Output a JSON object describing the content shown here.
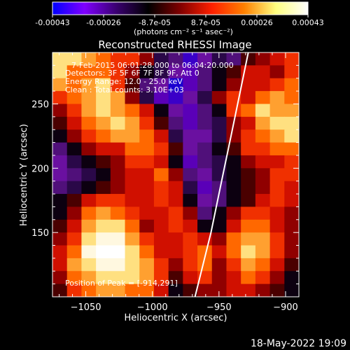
{
  "colorbar": {
    "tick_labels": [
      "-0.00043",
      "-0.00026",
      "-8.7e-05",
      "8.7e-05",
      "0.00026",
      "0.00043"
    ],
    "unit_label": "(photons cm⁻² s⁻¹ asec⁻²)",
    "colors": [
      "#0000ff",
      "#7f00ff",
      "#3a0070",
      "#000000",
      "#800000",
      "#ff2000",
      "#ff8000",
      "#ffff80",
      "#ffffff"
    ]
  },
  "chart_data": {
    "type": "heatmap",
    "title": "Reconstructed RHESSI Image",
    "xlabel": "Heliocentric X (arcsec)",
    "ylabel": "Heliocentric Y (arcsec)",
    "xlim": [
      -1075,
      -890
    ],
    "ylim": [
      100,
      290
    ],
    "x_ticks": [
      -1050,
      -1000,
      -950,
      -900
    ],
    "x_tick_labels": [
      "−1050",
      "−1000",
      "−950",
      "−900"
    ],
    "y_ticks": [
      150,
      200,
      250
    ],
    "y_tick_labels": [
      "150",
      "200",
      "250"
    ],
    "vmin": -0.00043,
    "vmax": 0.00043,
    "grid": false,
    "annotations": [
      "7-Feb-2015 06:01:28.000 to 06:04:20.000",
      "Detectors: 3F 5F 6F 7F 8F 9F, Att 0",
      "Energy Range: 12.0 - 25.0 keV",
      "Clean : Total counts: 3.10E+03"
    ],
    "peak_label": "Position of Peak = [-914,291]",
    "limb_curve": {
      "x": [
        -968,
        -962,
        -956,
        -951,
        -946,
        -941,
        -936,
        -931,
        -926
      ],
      "y": [
        100,
        125,
        150,
        175,
        200,
        225,
        250,
        275,
        300
      ]
    },
    "intensity_grid": {
      "x_start": -1075,
      "x_end": -890,
      "y_start": 290,
      "y_end": 100,
      "rows": [
        "ddcbaa8541354789a",
        "dbbba86532467998a",
        "cbcda7430246899ab",
        "abcdc8521358a9bcb",
        "8acdcb963246abdcc",
        "79bcdca7424589cdd",
        "68abccb953358abcd",
        "46899bba73467aabb",
        "35678aa962456899a",
        "3456899b8435678aa",
        "4567899a9524678a9",
        "679aa99a9634679a9",
        "68bcba99a8468aa98",
        "79cddb89a9669bb98",
        "8adeeca99a98bcca8",
        "9beffdb99ab9bdca8",
        "9cdeedca8ab8acb97",
        "8bcdddca79a89ba86",
        "7abccbb9678899876"
      ]
    }
  },
  "footer": {
    "timestamp": "18-May-2022 19:09"
  }
}
